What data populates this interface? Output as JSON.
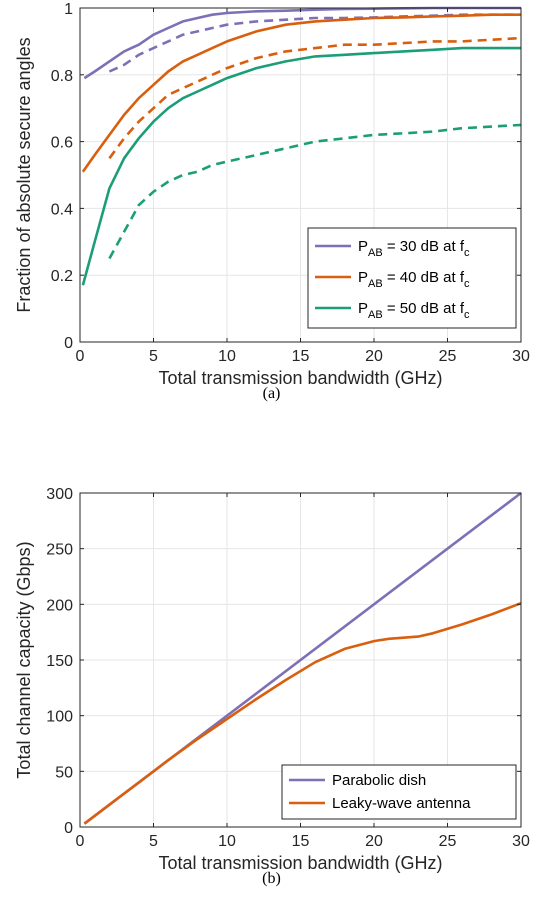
{
  "colors": {
    "purple": "#7e6fb7",
    "orange": "#d95f0e",
    "green": "#1b9e77",
    "grid": "#e6e6e6",
    "axis": "#262626"
  },
  "chart_data": [
    {
      "type": "line",
      "caption": "(a)",
      "xlabel": "Total transmission bandwidth (GHz)",
      "ylabel": "Fraction of absolute secure angles",
      "xlim": [
        0,
        30
      ],
      "ylim": [
        0,
        1
      ],
      "xticks": [
        "0",
        "5",
        "10",
        "15",
        "20",
        "25",
        "30"
      ],
      "yticks": [
        "0",
        "0.2",
        "0.4",
        "0.6",
        "0.8",
        "1"
      ],
      "grid": true,
      "legend_position": "bottom-right",
      "legend": [
        {
          "prefix": "P",
          "sub1": "AB",
          "middle": " = 30 dB at f",
          "sub2": "c",
          "color_key": "purple"
        },
        {
          "prefix": "P",
          "sub1": "AB",
          "middle": " = 40 dB at f",
          "sub2": "c",
          "color_key": "orange"
        },
        {
          "prefix": "P",
          "sub1": "AB",
          "middle": " = 50 dB at f",
          "sub2": "c",
          "color_key": "green"
        }
      ],
      "series": [
        {
          "color_key": "purple",
          "style": "solid",
          "x": [
            0.3,
            1,
            2,
            3,
            4,
            5,
            6,
            7,
            8,
            9,
            10,
            12,
            14,
            16,
            18,
            20,
            22,
            24,
            26,
            28,
            30
          ],
          "y": [
            0.79,
            0.81,
            0.84,
            0.87,
            0.89,
            0.92,
            0.94,
            0.96,
            0.97,
            0.98,
            0.985,
            0.99,
            0.992,
            0.995,
            0.997,
            0.998,
            0.999,
            1.0,
            1.0,
            1.0,
            1.0
          ]
        },
        {
          "color_key": "purple",
          "style": "dashed",
          "x": [
            2,
            3,
            4,
            5,
            6,
            7,
            8,
            9,
            10,
            12,
            14,
            16,
            18,
            20,
            22,
            24,
            26,
            28,
            30
          ],
          "y": [
            0.81,
            0.83,
            0.86,
            0.88,
            0.9,
            0.92,
            0.93,
            0.94,
            0.95,
            0.96,
            0.965,
            0.97,
            0.97,
            0.972,
            0.975,
            0.977,
            0.98,
            0.98,
            0.98
          ]
        },
        {
          "color_key": "orange",
          "style": "solid",
          "x": [
            0.2,
            1,
            2,
            3,
            4,
            5,
            6,
            7,
            8,
            9,
            10,
            12,
            14,
            16,
            18,
            20,
            22,
            24,
            26,
            28,
            30
          ],
          "y": [
            0.51,
            0.56,
            0.62,
            0.68,
            0.73,
            0.77,
            0.81,
            0.84,
            0.86,
            0.88,
            0.9,
            0.93,
            0.95,
            0.96,
            0.965,
            0.97,
            0.972,
            0.975,
            0.977,
            0.98,
            0.98
          ]
        },
        {
          "color_key": "orange",
          "style": "dashed",
          "x": [
            2,
            3,
            4,
            5,
            6,
            7,
            8,
            9,
            10,
            12,
            14,
            16,
            18,
            20,
            22,
            24,
            26,
            28,
            30
          ],
          "y": [
            0.55,
            0.61,
            0.66,
            0.7,
            0.74,
            0.76,
            0.78,
            0.8,
            0.82,
            0.85,
            0.87,
            0.88,
            0.89,
            0.89,
            0.895,
            0.9,
            0.9,
            0.905,
            0.91
          ]
        },
        {
          "color_key": "green",
          "style": "solid",
          "x": [
            0.2,
            1,
            2,
            3,
            4,
            5,
            6,
            7,
            8,
            9,
            10,
            12,
            14,
            16,
            18,
            20,
            22,
            24,
            26,
            28,
            30
          ],
          "y": [
            0.17,
            0.3,
            0.46,
            0.55,
            0.61,
            0.66,
            0.7,
            0.73,
            0.75,
            0.77,
            0.79,
            0.82,
            0.84,
            0.855,
            0.86,
            0.865,
            0.87,
            0.875,
            0.88,
            0.88,
            0.88
          ]
        },
        {
          "color_key": "green",
          "style": "dashed",
          "x": [
            2,
            3,
            4,
            5,
            6,
            7,
            8,
            9,
            10,
            12,
            14,
            16,
            18,
            20,
            22,
            24,
            26,
            28,
            30
          ],
          "y": [
            0.25,
            0.33,
            0.41,
            0.45,
            0.48,
            0.5,
            0.51,
            0.53,
            0.54,
            0.56,
            0.58,
            0.6,
            0.61,
            0.62,
            0.625,
            0.63,
            0.64,
            0.645,
            0.65
          ]
        }
      ]
    },
    {
      "type": "line",
      "caption": "(b)",
      "xlabel": "Total transmission bandwidth (GHz)",
      "ylabel": "Total channel capacity (Gbps)",
      "xlim": [
        0,
        30
      ],
      "ylim": [
        0,
        300
      ],
      "xticks": [
        "0",
        "5",
        "10",
        "15",
        "20",
        "25",
        "30"
      ],
      "yticks": [
        "0",
        "50",
        "100",
        "150",
        "200",
        "250",
        "300"
      ],
      "grid": true,
      "legend_position": "bottom-right",
      "legend": [
        {
          "text": "Parabolic dish",
          "color_key": "purple"
        },
        {
          "text": "Leaky-wave antenna",
          "color_key": "orange"
        }
      ],
      "series": [
        {
          "name": "Parabolic dish",
          "color_key": "purple",
          "style": "solid",
          "x": [
            0.3,
            30
          ],
          "y": [
            3,
            300
          ]
        },
        {
          "name": "Leaky-wave antenna",
          "color_key": "orange",
          "style": "solid",
          "x": [
            0.3,
            2,
            4,
            6,
            8,
            10,
            12,
            14,
            16,
            18,
            20,
            21,
            22,
            23,
            24,
            26,
            28,
            30
          ],
          "y": [
            3,
            20,
            40,
            60,
            79,
            97,
            115,
            132,
            148,
            160,
            167,
            169,
            170,
            171,
            174,
            182,
            191,
            201
          ]
        }
      ]
    }
  ]
}
